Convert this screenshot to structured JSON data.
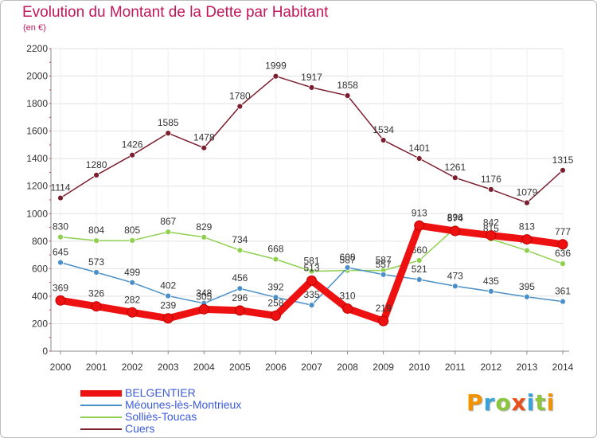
{
  "title": "Evolution du Montant de la Dette par Habitant",
  "unit_label": "(en €)",
  "brand": {
    "text": "Proxiti"
  },
  "chart_data": {
    "type": "line",
    "title": "Evolution du Montant de la Dette par Habitant",
    "ylabel": "(en €)",
    "ylim": [
      0,
      2200
    ],
    "yticks": [
      0,
      200,
      400,
      600,
      800,
      1000,
      1200,
      1400,
      1600,
      1800,
      2000,
      2200
    ],
    "categories": [
      "2000",
      "2001",
      "2002",
      "2003",
      "2004",
      "2005",
      "2006",
      "2007",
      "2008",
      "2009",
      "2010",
      "2011",
      "2012",
      "2013",
      "2014"
    ],
    "series": [
      {
        "name": "Cuers",
        "color": "#7b1f2e",
        "values": [
          1114,
          1280,
          1426,
          1585,
          1478,
          1780,
          1999,
          1917,
          1858,
          1534,
          1401,
          1261,
          1176,
          1079,
          1315
        ]
      },
      {
        "name": "Solliès-Toucas",
        "color": "#8fd14f",
        "values": [
          830,
          804,
          805,
          867,
          829,
          734,
          668,
          581,
          587,
          587,
          660,
          896,
          815,
          732,
          636
        ]
      },
      {
        "name": "Méounes-lès-Montrieux",
        "color": "#4a8fc7",
        "values": [
          645,
          573,
          499,
          402,
          348,
          456,
          392,
          335,
          608,
          557,
          521,
          473,
          435,
          395,
          361
        ]
      },
      {
        "name": "BELGENTIER",
        "color": "#ee1111",
        "values": [
          369,
          326,
          282,
          239,
          305,
          296,
          258,
          513,
          310,
          219,
          913,
          874,
          842,
          813,
          777
        ]
      }
    ],
    "legend": [
      "BELGENTIER",
      "Méounes-lès-Montrieux",
      "Solliès-Toucas",
      "Cuers"
    ]
  }
}
